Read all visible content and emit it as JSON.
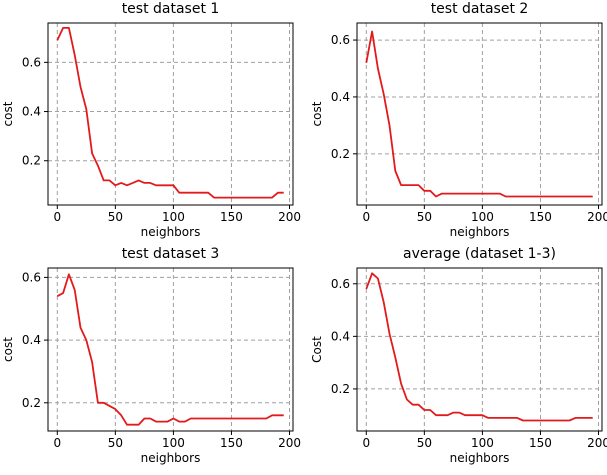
{
  "chart_data": [
    {
      "type": "line",
      "title": "test dataset 1",
      "xlabel": "neighbors",
      "ylabel": "cost",
      "xlim": [
        -8,
        203
      ],
      "ylim": [
        0.02,
        0.76
      ],
      "xticks": [
        0,
        50,
        100,
        150,
        200
      ],
      "yticks": [
        0.2,
        0.4,
        0.6
      ],
      "ytick_labels": [
        "0.2",
        "0.4",
        "0.6"
      ],
      "grid": true,
      "line_color": "#e31a1c",
      "x": [
        0,
        5,
        10,
        15,
        20,
        25,
        30,
        35,
        40,
        45,
        50,
        55,
        60,
        65,
        70,
        75,
        80,
        85,
        90,
        95,
        100,
        105,
        110,
        115,
        120,
        125,
        130,
        135,
        140,
        145,
        150,
        155,
        160,
        165,
        170,
        175,
        180,
        185,
        190,
        195
      ],
      "y": [
        0.69,
        0.74,
        0.74,
        0.63,
        0.5,
        0.41,
        0.23,
        0.18,
        0.12,
        0.12,
        0.1,
        0.11,
        0.1,
        0.11,
        0.12,
        0.11,
        0.11,
        0.1,
        0.1,
        0.1,
        0.1,
        0.07,
        0.07,
        0.07,
        0.07,
        0.07,
        0.07,
        0.05,
        0.05,
        0.05,
        0.05,
        0.05,
        0.05,
        0.05,
        0.05,
        0.05,
        0.05,
        0.05,
        0.07,
        0.07
      ]
    },
    {
      "type": "line",
      "title": "test dataset 2",
      "xlabel": "neighbors",
      "ylabel": "cost",
      "xlim": [
        -8,
        203
      ],
      "ylim": [
        0.02,
        0.66
      ],
      "xticks": [
        0,
        50,
        100,
        150,
        200
      ],
      "yticks": [
        0.2,
        0.4,
        0.6
      ],
      "ytick_labels": [
        "0.2",
        "0.4",
        "0.6"
      ],
      "grid": true,
      "line_color": "#e31a1c",
      "x": [
        0,
        5,
        10,
        15,
        20,
        25,
        30,
        35,
        40,
        45,
        50,
        55,
        60,
        65,
        70,
        75,
        80,
        85,
        90,
        95,
        100,
        105,
        110,
        115,
        120,
        125,
        130,
        135,
        140,
        145,
        150,
        155,
        160,
        165,
        170,
        175,
        180,
        185,
        190,
        195
      ],
      "y": [
        0.52,
        0.63,
        0.5,
        0.41,
        0.3,
        0.14,
        0.09,
        0.09,
        0.09,
        0.09,
        0.07,
        0.07,
        0.05,
        0.06,
        0.06,
        0.06,
        0.06,
        0.06,
        0.06,
        0.06,
        0.06,
        0.06,
        0.06,
        0.06,
        0.05,
        0.05,
        0.05,
        0.05,
        0.05,
        0.05,
        0.05,
        0.05,
        0.05,
        0.05,
        0.05,
        0.05,
        0.05,
        0.05,
        0.05,
        0.05
      ]
    },
    {
      "type": "line",
      "title": "test dataset 3",
      "xlabel": "neighbors",
      "ylabel": "cost",
      "xlim": [
        -8,
        203
      ],
      "ylim": [
        0.11,
        0.63
      ],
      "xticks": [
        0,
        50,
        100,
        150,
        200
      ],
      "yticks": [
        0.2,
        0.4,
        0.6
      ],
      "ytick_labels": [
        "0.2",
        "0.4",
        "0.6"
      ],
      "grid": true,
      "line_color": "#e31a1c",
      "x": [
        0,
        5,
        10,
        15,
        20,
        25,
        30,
        35,
        40,
        45,
        50,
        55,
        60,
        65,
        70,
        75,
        80,
        85,
        90,
        95,
        100,
        105,
        110,
        115,
        120,
        125,
        130,
        135,
        140,
        145,
        150,
        155,
        160,
        165,
        170,
        175,
        180,
        185,
        190,
        195
      ],
      "y": [
        0.54,
        0.55,
        0.61,
        0.56,
        0.44,
        0.4,
        0.33,
        0.2,
        0.2,
        0.19,
        0.18,
        0.16,
        0.13,
        0.13,
        0.13,
        0.15,
        0.15,
        0.14,
        0.14,
        0.14,
        0.15,
        0.14,
        0.14,
        0.15,
        0.15,
        0.15,
        0.15,
        0.15,
        0.15,
        0.15,
        0.15,
        0.15,
        0.15,
        0.15,
        0.15,
        0.15,
        0.15,
        0.16,
        0.16,
        0.16
      ]
    },
    {
      "type": "line",
      "title": "average (dataset 1-3)",
      "xlabel": "neighbors",
      "ylabel": "Cost",
      "xlim": [
        -8,
        203
      ],
      "ylim": [
        0.04,
        0.66
      ],
      "xticks": [
        0,
        50,
        100,
        150,
        200
      ],
      "yticks": [
        0.2,
        0.4,
        0.6
      ],
      "ytick_labels": [
        "0.2",
        "0.4",
        "0.6"
      ],
      "grid": true,
      "line_color": "#e31a1c",
      "x": [
        0,
        5,
        10,
        15,
        20,
        25,
        30,
        35,
        40,
        45,
        50,
        55,
        60,
        65,
        70,
        75,
        80,
        85,
        90,
        95,
        100,
        105,
        110,
        115,
        120,
        125,
        130,
        135,
        140,
        145,
        150,
        155,
        160,
        165,
        170,
        175,
        180,
        185,
        190,
        195
      ],
      "y": [
        0.58,
        0.64,
        0.62,
        0.53,
        0.41,
        0.32,
        0.22,
        0.16,
        0.14,
        0.14,
        0.12,
        0.12,
        0.1,
        0.1,
        0.1,
        0.11,
        0.11,
        0.1,
        0.1,
        0.1,
        0.1,
        0.09,
        0.09,
        0.09,
        0.09,
        0.09,
        0.09,
        0.08,
        0.08,
        0.08,
        0.08,
        0.08,
        0.08,
        0.08,
        0.08,
        0.08,
        0.09,
        0.09,
        0.09,
        0.09
      ]
    }
  ]
}
